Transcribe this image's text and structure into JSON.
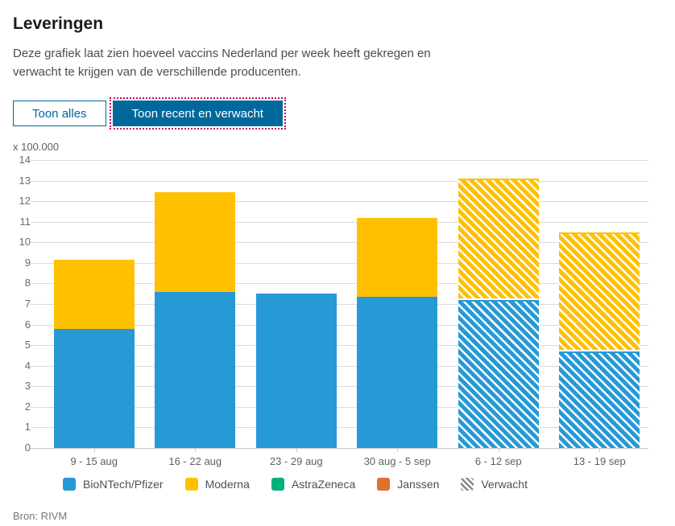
{
  "header": {
    "title": "Leveringen",
    "description": "Deze grafiek laat zien hoeveel vaccins Nederland per week heeft gekregen en verwacht te krijgen van de verschillende producenten."
  },
  "toolbar": {
    "show_all_label": "Toon alles",
    "show_recent_label": "Toon recent en verwacht",
    "selected_label": "Toon recent en verwacht",
    "active_bg_color": "#01689b",
    "focus_outline_color": "#ca005d"
  },
  "chart_data": {
    "type": "bar",
    "stacked": true,
    "title": "Leveringen",
    "unit_label": "x 100.000",
    "xlabel": "",
    "ylabel": "x 100.000",
    "ylim": [
      0,
      14
    ],
    "y_tick_step": 1,
    "grid": true,
    "legend_position": "bottom",
    "categories": [
      "9 - 15 aug",
      "16 - 22 aug",
      "23 - 29 aug",
      "30 aug - 5 sep",
      "6 - 12 sep",
      "13 - 19 sep"
    ],
    "series": [
      {
        "name": "BioNTech/Pfizer",
        "color": "#2699d6",
        "values": [
          5.8,
          7.6,
          7.5,
          7.35,
          7.2,
          4.7
        ]
      },
      {
        "name": "Moderna",
        "color": "#ffc000",
        "values": [
          3.35,
          4.85,
          0,
          3.85,
          5.9,
          5.8
        ]
      },
      {
        "name": "AstraZeneca",
        "color": "#00b17c",
        "values": [
          0,
          0,
          0,
          0,
          0,
          0
        ]
      },
      {
        "name": "Janssen",
        "color": "#e0702a",
        "values": [
          0,
          0,
          0,
          0,
          0,
          0
        ]
      }
    ],
    "totals": [
      9.15,
      12.45,
      7.5,
      11.2,
      13.1,
      10.5
    ],
    "expected_categories": [
      false,
      false,
      false,
      false,
      true,
      true
    ],
    "expected_label": "Verwacht"
  },
  "footer": {
    "source": "Bron: RIVM"
  }
}
